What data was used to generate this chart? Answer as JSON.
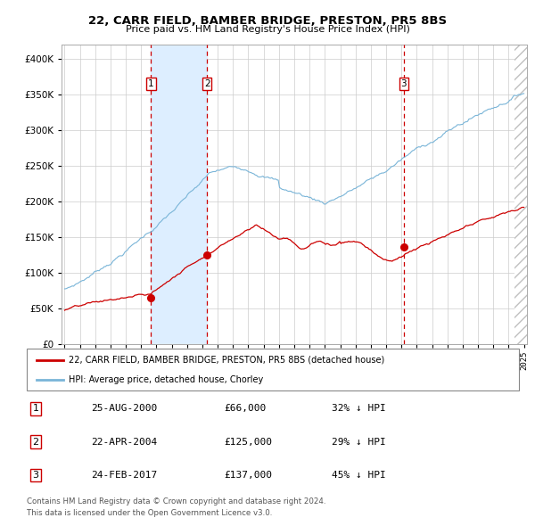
{
  "title": "22, CARR FIELD, BAMBER BRIDGE, PRESTON, PR5 8BS",
  "subtitle": "Price paid vs. HM Land Registry's House Price Index (HPI)",
  "x_start_year": 1995,
  "x_end_year": 2025,
  "ylim": [
    0,
    420000
  ],
  "yticks": [
    0,
    50000,
    100000,
    150000,
    200000,
    250000,
    300000,
    350000,
    400000
  ],
  "ytick_labels": [
    "£0",
    "£50K",
    "£100K",
    "£150K",
    "£200K",
    "£250K",
    "£300K",
    "£350K",
    "£400K"
  ],
  "sale_dates_num": [
    2000.648,
    2004.308,
    2017.147
  ],
  "sale_prices": [
    66000,
    125000,
    137000
  ],
  "sale_labels": [
    "1",
    "2",
    "3"
  ],
  "sale_date_strings": [
    "25-AUG-2000",
    "22-APR-2004",
    "24-FEB-2017"
  ],
  "sale_price_strings": [
    "£66,000",
    "£125,000",
    "£137,000"
  ],
  "sale_hpi_strings": [
    "32% ↓ HPI",
    "29% ↓ HPI",
    "45% ↓ HPI"
  ],
  "hpi_line_color": "#7ab5d8",
  "price_line_color": "#cc0000",
  "sale_dot_color": "#cc0000",
  "dashed_line_color": "#cc0000",
  "shaded_region_color": "#ddeeff",
  "legend_label_price": "22, CARR FIELD, BAMBER BRIDGE, PRESTON, PR5 8BS (detached house)",
  "legend_label_hpi": "HPI: Average price, detached house, Chorley",
  "footer1": "Contains HM Land Registry data © Crown copyright and database right 2024.",
  "footer2": "This data is licensed under the Open Government Licence v3.0."
}
